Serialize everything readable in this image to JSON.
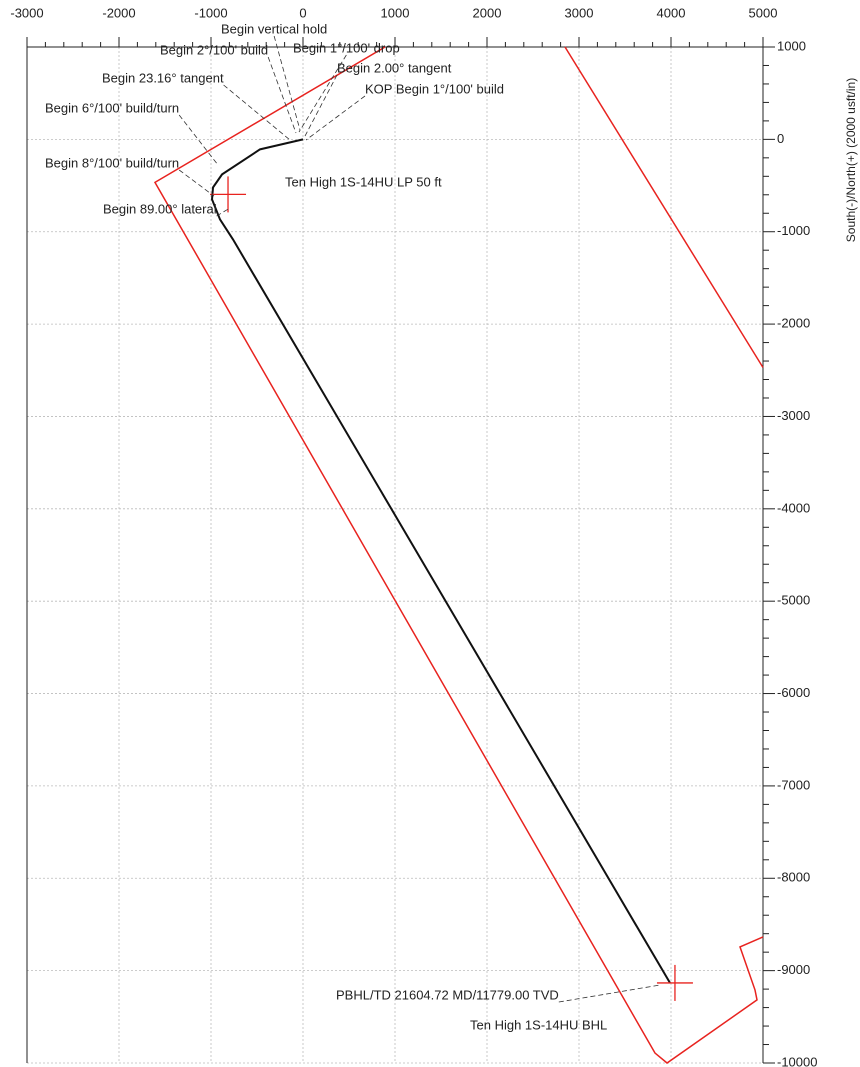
{
  "chart_data": {
    "type": "plan",
    "y_label": "South(-)/North(+) (2000 usft/in)",
    "xlim": [
      -3000,
      5000
    ],
    "xticks": [
      -3000,
      -2000,
      -1000,
      0,
      1000,
      2000,
      3000,
      4000,
      5000
    ],
    "ylim": [
      -10000,
      1000
    ],
    "yticks": [
      1000,
      0,
      -1000,
      -2000,
      -3000,
      -4000,
      -5000,
      -6000,
      -7000,
      -8000,
      -9000,
      -10000
    ],
    "grid": true,
    "series": [
      {
        "color": "#111111",
        "x": [
          0,
          -467,
          -880,
          -978,
          -989,
          -902,
          -761,
          3989
        ],
        "values": [
          0,
          -108,
          -379,
          -520,
          -650,
          -867,
          -1083,
          -9133
        ]
      },
      {
        "color": "#e8231f",
        "x": [
          5000,
          4750,
          4913,
          4935,
          3957,
          3826,
          -1609,
          891
        ],
        "values": [
          -8635,
          -8743,
          -9209,
          -9317,
          -10000,
          -9892,
          -466,
          1000
        ]
      },
      {
        "color": "#e8231f",
        "x": [
          2848,
          5000
        ],
        "values": [
          1000,
          -2470
        ]
      }
    ],
    "targets": [
      {
        "label": "Ten High 1S-14HU LP 50 ft",
        "x": -815,
        "y": -596
      },
      {
        "label": "Ten High 1S-14HU BHL",
        "x": 4043,
        "y": -9133
      }
    ],
    "annotations": [
      "Begin vertical hold",
      "Begin 2°/100' build",
      "Begin 1°/100' drop",
      "Begin 2.00° tangent",
      "Begin 23.16° tangent",
      "KOP Begin 1°/100' build",
      "Begin 6°/100' build/turn",
      "Begin 8°/100' build/turn",
      "Begin 89.00° lateral",
      "PBHL/TD 21604.72 MD/11779.00 TVD"
    ]
  }
}
